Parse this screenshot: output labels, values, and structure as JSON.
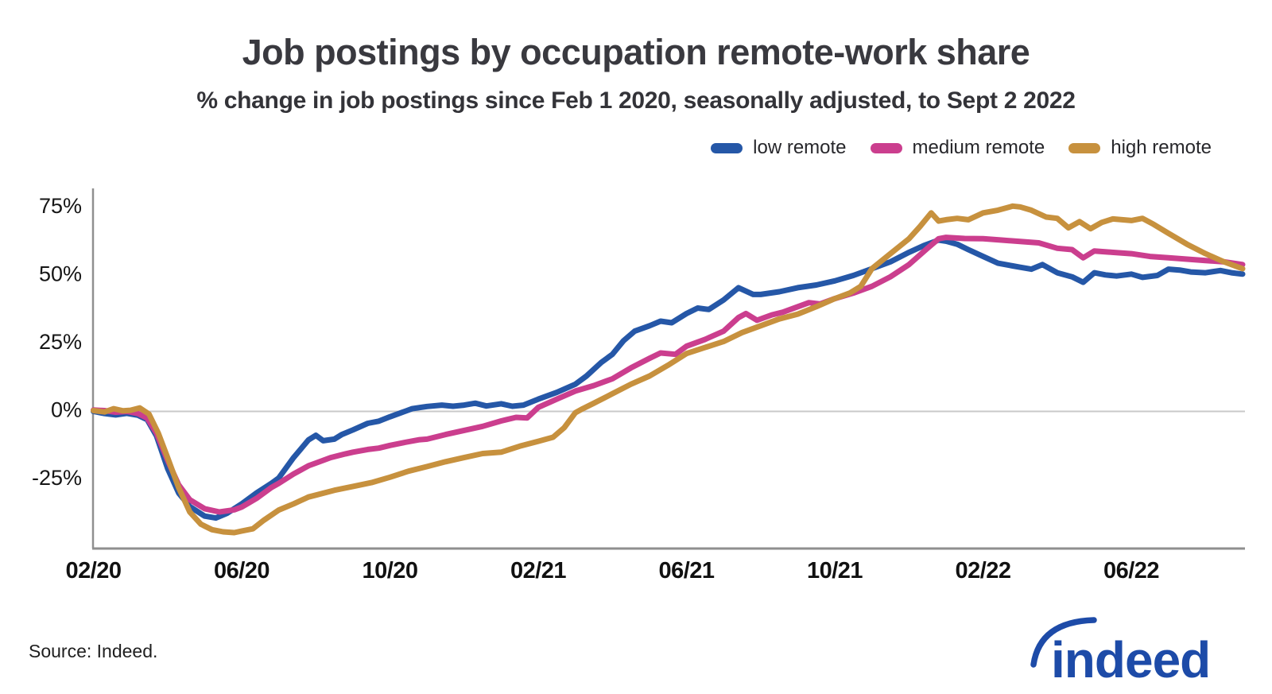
{
  "header": {
    "title": "Job postings by occupation remote-work share",
    "subtitle": "% change in job postings since Feb 1 2020, seasonally adjusted, to Sept 2 2022"
  },
  "legend": [
    {
      "label": "low remote",
      "color": "#2557a7"
    },
    {
      "label": "medium remote",
      "color": "#cb3e8e"
    },
    {
      "label": "high remote",
      "color": "#c7913e"
    }
  ],
  "colors": {
    "axis": "#8f8f8f",
    "zero_line": "#c9c9c9",
    "title_text": "#39393f",
    "logo_blue": "#1d4ba8"
  },
  "footer": {
    "source": "Source: Indeed.",
    "logo_text": "indeed"
  },
  "chart_data": {
    "type": "line",
    "title": "Job postings by occupation remote-work share",
    "subtitle": "% change in job postings since Feb 1 2020, seasonally adjusted, to Sept 2 2022",
    "x_unit": "months since Feb 1 2020",
    "x_end_date": "Sept 2 2022",
    "xticks": [
      "02/20",
      "06/20",
      "10/20",
      "02/21",
      "06/21",
      "10/21",
      "02/22",
      "06/22"
    ],
    "xtick_months": [
      0,
      4,
      8,
      12,
      16,
      20,
      24,
      28
    ],
    "yticks": [
      {
        "label": "75%",
        "value": 75
      },
      {
        "label": "50%",
        "value": 50
      },
      {
        "label": "25%",
        "value": 25
      },
      {
        "label": "0%",
        "value": 0
      },
      {
        "label": "-25%",
        "value": -25
      }
    ],
    "ylim": [
      -50,
      82
    ],
    "xlim_months": [
      0,
      31.05
    ],
    "grid": "zero-line-only",
    "legend_position": "top-right",
    "series": [
      {
        "name": "low remote",
        "color": "#2557a7",
        "points": [
          [
            0,
            0
          ],
          [
            0.3,
            -0.8
          ],
          [
            0.6,
            -1.3
          ],
          [
            0.9,
            -0.7
          ],
          [
            1.2,
            -1.4
          ],
          [
            1.45,
            -3
          ],
          [
            1.7,
            -9
          ],
          [
            2,
            -21
          ],
          [
            2.3,
            -30
          ],
          [
            2.6,
            -35
          ],
          [
            3,
            -38.5
          ],
          [
            3.3,
            -39.2
          ],
          [
            3.6,
            -37.5
          ],
          [
            4,
            -34
          ],
          [
            4.4,
            -30
          ],
          [
            4.8,
            -26.5
          ],
          [
            5,
            -24.5
          ],
          [
            5.4,
            -17
          ],
          [
            5.8,
            -10.5
          ],
          [
            6,
            -8.8
          ],
          [
            6.2,
            -10.8
          ],
          [
            6.5,
            -10.2
          ],
          [
            6.7,
            -8.5
          ],
          [
            7,
            -6.8
          ],
          [
            7.4,
            -4.4
          ],
          [
            7.7,
            -3.6
          ],
          [
            8,
            -2
          ],
          [
            8.3,
            -0.5
          ],
          [
            8.6,
            1
          ],
          [
            9,
            1.8
          ],
          [
            9.4,
            2.3
          ],
          [
            9.7,
            1.9
          ],
          [
            10,
            2.3
          ],
          [
            10.3,
            3
          ],
          [
            10.6,
            2
          ],
          [
            11,
            2.8
          ],
          [
            11.3,
            1.9
          ],
          [
            11.6,
            2.3
          ],
          [
            12,
            4.5
          ],
          [
            12.5,
            7
          ],
          [
            13,
            10
          ],
          [
            13.3,
            13
          ],
          [
            13.7,
            18
          ],
          [
            14,
            21
          ],
          [
            14.3,
            26
          ],
          [
            14.6,
            29.5
          ],
          [
            15,
            31.5
          ],
          [
            15.3,
            33.2
          ],
          [
            15.6,
            32.6
          ],
          [
            16,
            36
          ],
          [
            16.3,
            38
          ],
          [
            16.6,
            37.5
          ],
          [
            17,
            41
          ],
          [
            17.4,
            45.5
          ],
          [
            17.8,
            43
          ],
          [
            18,
            43
          ],
          [
            18.5,
            44
          ],
          [
            19,
            45.5
          ],
          [
            19.5,
            46.5
          ],
          [
            20,
            48
          ],
          [
            20.5,
            50
          ],
          [
            21,
            52.5
          ],
          [
            21.5,
            55
          ],
          [
            22,
            58.5
          ],
          [
            22.4,
            61
          ],
          [
            22.8,
            63
          ],
          [
            23,
            62.6
          ],
          [
            23.3,
            61.5
          ],
          [
            23.6,
            59.5
          ],
          [
            24,
            57
          ],
          [
            24.4,
            54.5
          ],
          [
            24.8,
            53.5
          ],
          [
            25,
            53
          ],
          [
            25.3,
            52.3
          ],
          [
            25.6,
            54
          ],
          [
            26,
            51
          ],
          [
            26.4,
            49.5
          ],
          [
            26.7,
            47.5
          ],
          [
            27,
            51
          ],
          [
            27.3,
            50.2
          ],
          [
            27.6,
            49.8
          ],
          [
            28,
            50.5
          ],
          [
            28.3,
            49.3
          ],
          [
            28.7,
            50
          ],
          [
            29,
            52.3
          ],
          [
            29.3,
            52
          ],
          [
            29.6,
            51.3
          ],
          [
            30,
            51
          ],
          [
            30.4,
            51.8
          ],
          [
            30.7,
            51
          ],
          [
            31,
            50.5
          ]
        ]
      },
      {
        "name": "medium remote",
        "color": "#cb3e8e",
        "points": [
          [
            0,
            0.5
          ],
          [
            0.3,
            0.3
          ],
          [
            0.6,
            -0.3
          ],
          [
            0.9,
            0
          ],
          [
            1.2,
            -0.8
          ],
          [
            1.45,
            -2.5
          ],
          [
            1.7,
            -8
          ],
          [
            2,
            -18
          ],
          [
            2.3,
            -27
          ],
          [
            2.6,
            -32.5
          ],
          [
            3,
            -35.8
          ],
          [
            3.4,
            -37
          ],
          [
            3.8,
            -36.2
          ],
          [
            4,
            -35.2
          ],
          [
            4.4,
            -32
          ],
          [
            4.8,
            -28
          ],
          [
            5,
            -26.5
          ],
          [
            5.4,
            -23
          ],
          [
            5.8,
            -20
          ],
          [
            6,
            -19
          ],
          [
            6.4,
            -17
          ],
          [
            6.8,
            -15.6
          ],
          [
            7,
            -15
          ],
          [
            7.4,
            -14
          ],
          [
            7.7,
            -13.5
          ],
          [
            8,
            -12.5
          ],
          [
            8.4,
            -11.4
          ],
          [
            8.8,
            -10.4
          ],
          [
            9,
            -10.2
          ],
          [
            9.5,
            -8.5
          ],
          [
            10,
            -7
          ],
          [
            10.5,
            -5.5
          ],
          [
            11,
            -3.5
          ],
          [
            11.4,
            -2.2
          ],
          [
            11.7,
            -2.4
          ],
          [
            12,
            1.5
          ],
          [
            12.5,
            4.5
          ],
          [
            13,
            7.5
          ],
          [
            13.5,
            9.5
          ],
          [
            14,
            12
          ],
          [
            14.5,
            16
          ],
          [
            15,
            19.5
          ],
          [
            15.3,
            21.5
          ],
          [
            15.7,
            21
          ],
          [
            16,
            24
          ],
          [
            16.5,
            26.5
          ],
          [
            17,
            29.5
          ],
          [
            17.4,
            34.5
          ],
          [
            17.6,
            36
          ],
          [
            17.9,
            33.5
          ],
          [
            18.3,
            35.5
          ],
          [
            18.6,
            36.5
          ],
          [
            19,
            38.5
          ],
          [
            19.3,
            40
          ],
          [
            19.6,
            39.5
          ],
          [
            20,
            41.5
          ],
          [
            20.5,
            43.5
          ],
          [
            21,
            46
          ],
          [
            21.5,
            49.5
          ],
          [
            22,
            54
          ],
          [
            22.5,
            60
          ],
          [
            22.8,
            63.5
          ],
          [
            23,
            64
          ],
          [
            23.5,
            63.6
          ],
          [
            24,
            63.5
          ],
          [
            24.5,
            63
          ],
          [
            25,
            62.5
          ],
          [
            25.5,
            62
          ],
          [
            26,
            60
          ],
          [
            26.4,
            59.5
          ],
          [
            26.7,
            56.5
          ],
          [
            27,
            59
          ],
          [
            27.4,
            58.6
          ],
          [
            28,
            58
          ],
          [
            28.5,
            57
          ],
          [
            29,
            56.5
          ],
          [
            29.5,
            56
          ],
          [
            30,
            55.5
          ],
          [
            30.5,
            55
          ],
          [
            31,
            54
          ]
        ]
      },
      {
        "name": "high remote",
        "color": "#c7913e",
        "points": [
          [
            0,
            0.3
          ],
          [
            0.3,
            -0.2
          ],
          [
            0.55,
            1
          ],
          [
            0.8,
            0.2
          ],
          [
            1,
            0.4
          ],
          [
            1.25,
            1.3
          ],
          [
            1.5,
            -1
          ],
          [
            1.75,
            -8
          ],
          [
            2,
            -17
          ],
          [
            2.3,
            -28
          ],
          [
            2.6,
            -37
          ],
          [
            2.9,
            -41.5
          ],
          [
            3.2,
            -43.5
          ],
          [
            3.5,
            -44.3
          ],
          [
            3.8,
            -44.6
          ],
          [
            4,
            -44
          ],
          [
            4.3,
            -43.2
          ],
          [
            4.6,
            -40
          ],
          [
            5,
            -36.3
          ],
          [
            5.4,
            -34
          ],
          [
            5.8,
            -31.5
          ],
          [
            6,
            -30.8
          ],
          [
            6.5,
            -29
          ],
          [
            7,
            -27.6
          ],
          [
            7.5,
            -26.2
          ],
          [
            8,
            -24.2
          ],
          [
            8.5,
            -22
          ],
          [
            9,
            -20.3
          ],
          [
            9.5,
            -18.5
          ],
          [
            10,
            -17
          ],
          [
            10.5,
            -15.5
          ],
          [
            11,
            -15
          ],
          [
            11.5,
            -12.8
          ],
          [
            12,
            -11
          ],
          [
            12.4,
            -9.5
          ],
          [
            12.7,
            -6
          ],
          [
            13,
            -0.5
          ],
          [
            13.2,
            1
          ],
          [
            13.5,
            3
          ],
          [
            14,
            6.5
          ],
          [
            14.5,
            10
          ],
          [
            15,
            13
          ],
          [
            15.5,
            17
          ],
          [
            16,
            21.3
          ],
          [
            16.5,
            23.5
          ],
          [
            17,
            25.7
          ],
          [
            17.5,
            29
          ],
          [
            18,
            31.5
          ],
          [
            18.5,
            34
          ],
          [
            19,
            35.8
          ],
          [
            19.5,
            38.5
          ],
          [
            20,
            41.5
          ],
          [
            20.4,
            43.5
          ],
          [
            20.7,
            46
          ],
          [
            21,
            52.5
          ],
          [
            21.5,
            58
          ],
          [
            22,
            63.5
          ],
          [
            22.3,
            68
          ],
          [
            22.6,
            73
          ],
          [
            22.8,
            70
          ],
          [
            23,
            70.5
          ],
          [
            23.3,
            71
          ],
          [
            23.6,
            70.5
          ],
          [
            24,
            73
          ],
          [
            24.4,
            74
          ],
          [
            24.8,
            75.5
          ],
          [
            25,
            75.2
          ],
          [
            25.3,
            74
          ],
          [
            25.7,
            71.5
          ],
          [
            26,
            71
          ],
          [
            26.3,
            67.5
          ],
          [
            26.6,
            69.8
          ],
          [
            26.9,
            67.2
          ],
          [
            27.2,
            69.5
          ],
          [
            27.5,
            70.8
          ],
          [
            28,
            70.2
          ],
          [
            28.3,
            71
          ],
          [
            28.6,
            68.8
          ],
          [
            29,
            65.5
          ],
          [
            29.5,
            61.5
          ],
          [
            30,
            58
          ],
          [
            30.5,
            55
          ],
          [
            31,
            52.5
          ]
        ]
      }
    ]
  }
}
